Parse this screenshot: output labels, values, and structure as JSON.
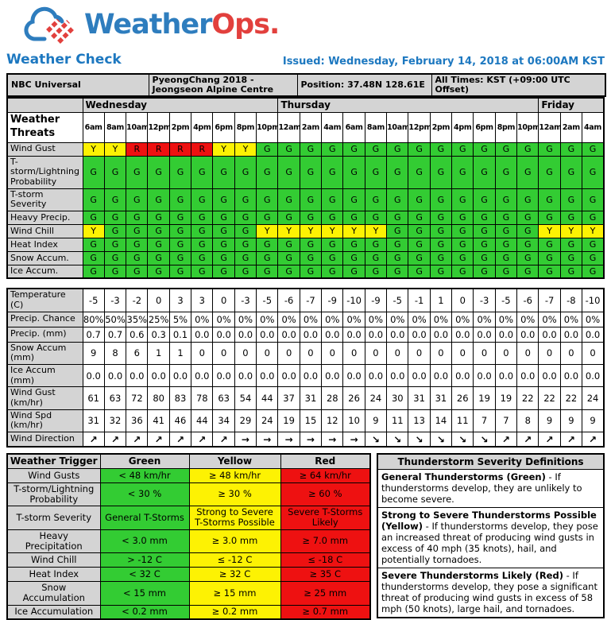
{
  "colors": {
    "green": "#33cc33",
    "yellow": "#fdf203",
    "red": "#ee1111",
    "gray": "#d4d4d4",
    "blue": "#1d78c0",
    "logo_blue": "#2e7dbe",
    "logo_red": "#e2403d"
  },
  "brand": {
    "weather": "Weather",
    "ops": "Ops.",
    "cloud_icon": "weatherops-cloud-icon"
  },
  "page": {
    "title": "Weather Check",
    "issued": "Issued: Wednesday, February 14, 2018 at 06:00AM KST"
  },
  "info": {
    "org": "NBC Universal",
    "venue": "PyeongChang 2018 - Jeongseon Alpine Centre",
    "position": "Position: 37.48N 128.61E",
    "times_note": "All Times: KST (+09:00 UTC Offset)"
  },
  "threats": {
    "corner_label": "Weather Threats",
    "days": [
      {
        "label": "Wednesday",
        "span": 9
      },
      {
        "label": "Thursday",
        "span": 12
      },
      {
        "label": "Friday",
        "span": 3
      }
    ],
    "times": [
      "6am",
      "8am",
      "10am",
      "12pm",
      "2pm",
      "4pm",
      "6pm",
      "8pm",
      "10pm",
      "12am",
      "2am",
      "4am",
      "6am",
      "8am",
      "10am",
      "12pm",
      "2pm",
      "4pm",
      "6pm",
      "8pm",
      "10pm",
      "12am",
      "2am",
      "4am"
    ],
    "rows": [
      {
        "label": "Wind Gust",
        "cells": [
          "Y",
          "Y",
          "R",
          "R",
          "R",
          "R",
          "Y",
          "Y",
          "G",
          "G",
          "G",
          "G",
          "G",
          "G",
          "G",
          "G",
          "G",
          "G",
          "G",
          "G",
          "G",
          "G",
          "G",
          "G"
        ]
      },
      {
        "label": "T-storm/Lightning Probability",
        "cells": [
          "G",
          "G",
          "G",
          "G",
          "G",
          "G",
          "G",
          "G",
          "G",
          "G",
          "G",
          "G",
          "G",
          "G",
          "G",
          "G",
          "G",
          "G",
          "G",
          "G",
          "G",
          "G",
          "G",
          "G"
        ]
      },
      {
        "label": "T-storm Severity",
        "cells": [
          "G",
          "G",
          "G",
          "G",
          "G",
          "G",
          "G",
          "G",
          "G",
          "G",
          "G",
          "G",
          "G",
          "G",
          "G",
          "G",
          "G",
          "G",
          "G",
          "G",
          "G",
          "G",
          "G",
          "G"
        ]
      },
      {
        "label": "Heavy Precip.",
        "cells": [
          "G",
          "G",
          "G",
          "G",
          "G",
          "G",
          "G",
          "G",
          "G",
          "G",
          "G",
          "G",
          "G",
          "G",
          "G",
          "G",
          "G",
          "G",
          "G",
          "G",
          "G",
          "G",
          "G",
          "G"
        ]
      },
      {
        "label": "Wind Chill",
        "cells": [
          "Y",
          "G",
          "G",
          "G",
          "G",
          "G",
          "G",
          "G",
          "Y",
          "Y",
          "Y",
          "Y",
          "Y",
          "Y",
          "G",
          "G",
          "G",
          "G",
          "G",
          "G",
          "G",
          "Y",
          "Y",
          "Y"
        ]
      },
      {
        "label": "Heat Index",
        "cells": [
          "G",
          "G",
          "G",
          "G",
          "G",
          "G",
          "G",
          "G",
          "G",
          "G",
          "G",
          "G",
          "G",
          "G",
          "G",
          "G",
          "G",
          "G",
          "G",
          "G",
          "G",
          "G",
          "G",
          "G"
        ]
      },
      {
        "label": "Snow Accum.",
        "cells": [
          "G",
          "G",
          "G",
          "G",
          "G",
          "G",
          "G",
          "G",
          "G",
          "G",
          "G",
          "G",
          "G",
          "G",
          "G",
          "G",
          "G",
          "G",
          "G",
          "G",
          "G",
          "G",
          "G",
          "G"
        ]
      },
      {
        "label": "Ice Accum.",
        "cells": [
          "G",
          "G",
          "G",
          "G",
          "G",
          "G",
          "G",
          "G",
          "G",
          "G",
          "G",
          "G",
          "G",
          "G",
          "G",
          "G",
          "G",
          "G",
          "G",
          "G",
          "G",
          "G",
          "G",
          "G"
        ]
      }
    ]
  },
  "metrics": {
    "rows": [
      {
        "label": "Temperature (C)",
        "values": [
          "-5",
          "-3",
          "-2",
          "0",
          "3",
          "3",
          "0",
          "-3",
          "-5",
          "-6",
          "-7",
          "-9",
          "-10",
          "-9",
          "-5",
          "-1",
          "1",
          "0",
          "-3",
          "-5",
          "-6",
          "-7",
          "-8",
          "-10"
        ]
      },
      {
        "label": "Precip. Chance",
        "values": [
          "80%",
          "50%",
          "35%",
          "25%",
          "5%",
          "0%",
          "0%",
          "0%",
          "0%",
          "0%",
          "0%",
          "0%",
          "0%",
          "0%",
          "0%",
          "0%",
          "0%",
          "0%",
          "0%",
          "0%",
          "0%",
          "0%",
          "0%",
          "0%"
        ]
      },
      {
        "label": "Precip. (mm)",
        "values": [
          "0.7",
          "0.7",
          "0.6",
          "0.3",
          "0.1",
          "0.0",
          "0.0",
          "0.0",
          "0.0",
          "0.0",
          "0.0",
          "0.0",
          "0.0",
          "0.0",
          "0.0",
          "0.0",
          "0.0",
          "0.0",
          "0.0",
          "0.0",
          "0.0",
          "0.0",
          "0.0",
          "0.0"
        ]
      },
      {
        "label": "Snow Accum (mm)",
        "values": [
          "9",
          "8",
          "6",
          "1",
          "1",
          "0",
          "0",
          "0",
          "0",
          "0",
          "0",
          "0",
          "0",
          "0",
          "0",
          "0",
          "0",
          "0",
          "0",
          "0",
          "0",
          "0",
          "0",
          "0"
        ]
      },
      {
        "label": "Ice Accum (mm)",
        "values": [
          "0.0",
          "0.0",
          "0.0",
          "0.0",
          "0.0",
          "0.0",
          "0.0",
          "0.0",
          "0.0",
          "0.0",
          "0.0",
          "0.0",
          "0.0",
          "0.0",
          "0.0",
          "0.0",
          "0.0",
          "0.0",
          "0.0",
          "0.0",
          "0.0",
          "0.0",
          "0.0",
          "0.0"
        ]
      },
      {
        "label": "Wind Gust (km/hr)",
        "values": [
          "61",
          "63",
          "72",
          "80",
          "83",
          "78",
          "63",
          "54",
          "44",
          "37",
          "31",
          "28",
          "26",
          "24",
          "30",
          "31",
          "31",
          "26",
          "19",
          "19",
          "22",
          "22",
          "22",
          "24"
        ]
      },
      {
        "label": "Wind Spd (km/hr)",
        "values": [
          "31",
          "32",
          "36",
          "41",
          "46",
          "44",
          "34",
          "29",
          "24",
          "19",
          "15",
          "12",
          "10",
          "9",
          "11",
          "13",
          "14",
          "11",
          "7",
          "7",
          "8",
          "9",
          "9",
          "9"
        ]
      },
      {
        "label": "Wind Direction",
        "values": [
          "↗",
          "↗",
          "↗",
          "↗",
          "↗",
          "↗",
          "↗",
          "→",
          "→",
          "→",
          "→",
          "→",
          "→",
          "↘",
          "↘",
          "↘",
          "↘",
          "↘",
          "↘",
          "↗",
          "↗",
          "↗",
          "↗",
          "↗"
        ],
        "is_direction": true
      }
    ]
  },
  "legend": {
    "header": [
      "Weather Trigger",
      "Green",
      "Yellow",
      "Red"
    ],
    "rows": [
      {
        "label": "Wind Gusts",
        "green": "< 48 km/hr",
        "yellow": "≥ 48 km/hr",
        "red": "≥ 64 km/hr"
      },
      {
        "label": "T-storm/Lightning Probability",
        "green": "< 30 %",
        "yellow": "≥ 30 %",
        "red": "≥ 60 %"
      },
      {
        "label": "T-storm Severity",
        "green": "General T-Storms",
        "yellow": "Strong to Severe T-Storms Possible",
        "red": "Severe T-Storms Likely"
      },
      {
        "label": "Heavy Precipitation",
        "green": "< 3.0 mm",
        "yellow": "≥ 3.0 mm",
        "red": "≥ 7.0 mm"
      },
      {
        "label": "Wind Chill",
        "green": "> -12 C",
        "yellow": "≤ -12 C",
        "red": "≤ -18 C"
      },
      {
        "label": "Heat Index",
        "green": "< 32 C",
        "yellow": "≥ 32 C",
        "red": "≥ 35 C"
      },
      {
        "label": "Snow Accumulation",
        "green": "< 15 mm",
        "yellow": "≥ 15 mm",
        "red": "≥ 25 mm"
      },
      {
        "label": "Ice Accumulation",
        "green": "< 0.2 mm",
        "yellow": "≥ 0.2 mm",
        "red": "≥ 0.7 mm"
      }
    ]
  },
  "definitions": {
    "title": "Thunderstorm Severity Definitions",
    "items": [
      {
        "lead": "General Thunderstorms (Green)",
        "text": " - If thunderstorms develop, they are unlikely to become severe."
      },
      {
        "lead": "Strong to Severe Thunderstorms Possible (Yellow)",
        "text": " - If thunderstorms develop, they pose an increased threat of producing wind gusts in excess of 40 mph (35 knots), hail, and potentially tornadoes."
      },
      {
        "lead": "Severe Thunderstorms Likely (Red)",
        "text": " - If thunderstorms develop, they pose a significant threat of producing wind gusts in excess of 58 mph (50 knots), large hail, and tornadoes."
      }
    ]
  }
}
